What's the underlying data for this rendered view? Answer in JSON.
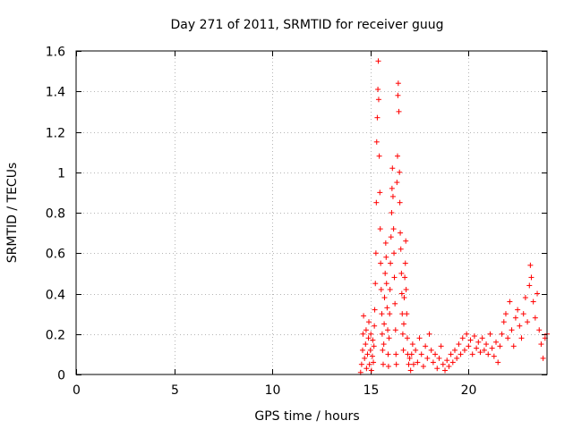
{
  "chart_data": {
    "type": "scatter",
    "title": "Day 271 of 2011, SRMTID for receiver guug",
    "xlabel": "GPS time / hours",
    "ylabel": "SRMTID / TECUs",
    "xlim": [
      0,
      24
    ],
    "ylim": [
      0,
      1.6
    ],
    "xticks": [
      0,
      5,
      10,
      15,
      20
    ],
    "yticks": [
      0,
      0.2,
      0.4,
      0.6,
      0.8,
      1,
      1.2,
      1.4,
      1.6
    ],
    "xtick_labels": [
      "0",
      "5",
      "10",
      "15",
      "20"
    ],
    "ytick_labels": [
      "0",
      "0.2",
      "0.4",
      "0.6",
      "0.8",
      "1",
      "1.2",
      "1.4",
      "1.6"
    ],
    "grid": true,
    "marker": "+",
    "color": "#ff0000",
    "series": [
      {
        "points": [
          [
            14.5,
            0.01
          ],
          [
            14.55,
            0.05
          ],
          [
            14.6,
            0.12
          ],
          [
            14.62,
            0.2
          ],
          [
            14.65,
            0.29
          ],
          [
            14.7,
            0.08
          ],
          [
            14.75,
            0.15
          ],
          [
            14.78,
            0.22
          ],
          [
            14.8,
            0.03
          ],
          [
            14.85,
            0.1
          ],
          [
            14.9,
            0.18
          ],
          [
            14.92,
            0.26
          ],
          [
            14.95,
            0.05
          ],
          [
            15.0,
            0.12
          ],
          [
            15.02,
            0.2
          ],
          [
            15.05,
            0.02
          ],
          [
            15.1,
            0.09
          ],
          [
            15.12,
            0.17
          ],
          [
            15.15,
            0.06
          ],
          [
            15.18,
            0.14
          ],
          [
            15.2,
            0.24
          ],
          [
            15.22,
            0.32
          ],
          [
            15.25,
            0.45
          ],
          [
            15.28,
            0.6
          ],
          [
            15.3,
            0.85
          ],
          [
            15.32,
            1.15
          ],
          [
            15.35,
            1.27
          ],
          [
            15.38,
            1.41
          ],
          [
            15.4,
            1.55
          ],
          [
            15.42,
            1.36
          ],
          [
            15.45,
            1.08
          ],
          [
            15.48,
            0.9
          ],
          [
            15.5,
            0.72
          ],
          [
            15.52,
            0.55
          ],
          [
            15.55,
            0.42
          ],
          [
            15.58,
            0.3
          ],
          [
            15.6,
            0.2
          ],
          [
            15.62,
            0.12
          ],
          [
            15.65,
            0.05
          ],
          [
            15.68,
            0.15
          ],
          [
            15.7,
            0.25
          ],
          [
            15.72,
            0.38
          ],
          [
            15.75,
            0.5
          ],
          [
            15.78,
            0.65
          ],
          [
            15.8,
            0.58
          ],
          [
            15.82,
            0.45
          ],
          [
            15.85,
            0.33
          ],
          [
            15.88,
            0.22
          ],
          [
            15.9,
            0.1
          ],
          [
            15.92,
            0.04
          ],
          [
            15.95,
            0.18
          ],
          [
            15.98,
            0.3
          ],
          [
            16.0,
            0.42
          ],
          [
            16.02,
            0.55
          ],
          [
            16.05,
            0.68
          ],
          [
            16.08,
            0.8
          ],
          [
            16.1,
            0.92
          ],
          [
            16.12,
            1.02
          ],
          [
            16.15,
            0.88
          ],
          [
            16.18,
            0.72
          ],
          [
            16.2,
            0.6
          ],
          [
            16.22,
            0.48
          ],
          [
            16.25,
            0.35
          ],
          [
            16.28,
            0.22
          ],
          [
            16.3,
            0.1
          ],
          [
            16.32,
            0.05
          ],
          [
            16.35,
            0.95
          ],
          [
            16.38,
            1.08
          ],
          [
            16.4,
            1.38
          ],
          [
            16.42,
            1.44
          ],
          [
            16.45,
            1.3
          ],
          [
            16.48,
            1.0
          ],
          [
            16.5,
            0.85
          ],
          [
            16.52,
            0.7
          ],
          [
            16.55,
            0.62
          ],
          [
            16.58,
            0.5
          ],
          [
            16.6,
            0.4
          ],
          [
            16.62,
            0.3
          ],
          [
            16.65,
            0.2
          ],
          [
            16.68,
            0.12
          ],
          [
            16.7,
            0.25
          ],
          [
            16.72,
            0.38
          ],
          [
            16.75,
            0.48
          ],
          [
            16.78,
            0.55
          ],
          [
            16.8,
            0.66
          ],
          [
            16.82,
            0.42
          ],
          [
            16.85,
            0.3
          ],
          [
            16.88,
            0.18
          ],
          [
            16.9,
            0.1
          ],
          [
            16.95,
            0.05
          ],
          [
            17.0,
            0.08
          ],
          [
            17.05,
            0.02
          ],
          [
            17.1,
            0.1
          ],
          [
            17.15,
            0.15
          ],
          [
            17.2,
            0.05
          ],
          [
            17.3,
            0.12
          ],
          [
            17.4,
            0.06
          ],
          [
            17.5,
            0.18
          ],
          [
            17.6,
            0.1
          ],
          [
            17.7,
            0.04
          ],
          [
            17.8,
            0.14
          ],
          [
            17.9,
            0.08
          ],
          [
            18.0,
            0.2
          ],
          [
            18.1,
            0.12
          ],
          [
            18.2,
            0.06
          ],
          [
            18.3,
            0.1
          ],
          [
            18.4,
            0.03
          ],
          [
            18.5,
            0.08
          ],
          [
            18.6,
            0.14
          ],
          [
            18.7,
            0.05
          ],
          [
            18.8,
            0.02
          ],
          [
            18.9,
            0.07
          ],
          [
            19.0,
            0.04
          ],
          [
            19.1,
            0.1
          ],
          [
            19.2,
            0.06
          ],
          [
            19.3,
            0.12
          ],
          [
            19.4,
            0.08
          ],
          [
            19.5,
            0.15
          ],
          [
            19.6,
            0.1
          ],
          [
            19.7,
            0.18
          ],
          [
            19.8,
            0.12
          ],
          [
            19.9,
            0.2
          ],
          [
            20.0,
            0.14
          ],
          [
            20.1,
            0.17
          ],
          [
            20.2,
            0.1
          ],
          [
            20.3,
            0.19
          ],
          [
            20.4,
            0.13
          ],
          [
            20.5,
            0.16
          ],
          [
            20.6,
            0.11
          ],
          [
            20.7,
            0.18
          ],
          [
            20.8,
            0.12
          ],
          [
            20.9,
            0.15
          ],
          [
            21.0,
            0.1
          ],
          [
            21.1,
            0.2
          ],
          [
            21.2,
            0.13
          ],
          [
            21.3,
            0.09
          ],
          [
            21.4,
            0.16
          ],
          [
            21.5,
            0.06
          ],
          [
            21.6,
            0.14
          ],
          [
            21.7,
            0.2
          ],
          [
            21.8,
            0.26
          ],
          [
            21.9,
            0.3
          ],
          [
            22.0,
            0.18
          ],
          [
            22.1,
            0.36
          ],
          [
            22.2,
            0.22
          ],
          [
            22.3,
            0.14
          ],
          [
            22.4,
            0.28
          ],
          [
            22.5,
            0.32
          ],
          [
            22.6,
            0.24
          ],
          [
            22.7,
            0.18
          ],
          [
            22.8,
            0.3
          ],
          [
            22.9,
            0.38
          ],
          [
            23.0,
            0.26
          ],
          [
            23.1,
            0.44
          ],
          [
            23.15,
            0.54
          ],
          [
            23.2,
            0.48
          ],
          [
            23.3,
            0.36
          ],
          [
            23.4,
            0.28
          ],
          [
            23.5,
            0.4
          ],
          [
            23.6,
            0.22
          ],
          [
            23.7,
            0.15
          ],
          [
            23.8,
            0.08
          ],
          [
            23.9,
            0.18
          ],
          [
            24.0,
            0.2
          ]
        ]
      }
    ]
  }
}
